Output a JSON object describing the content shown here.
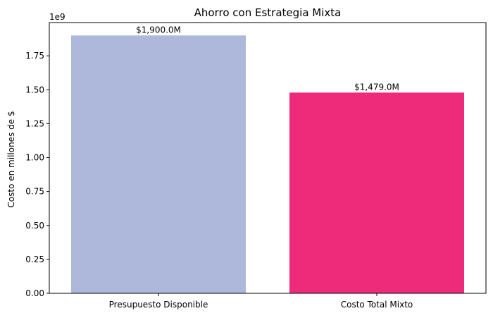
{
  "chart_data": {
    "type": "bar",
    "title": "Ahorro con Estrategia Mixta",
    "xlabel": "",
    "ylabel": "Costo en millones de $",
    "y_offset_label": "1e9",
    "categories": [
      "Presupuesto Disponible",
      "Costo Total Mixto"
    ],
    "values": [
      1900000000,
      1479000000
    ],
    "colors": [
      "#aeb8da",
      "#ee2a7b"
    ],
    "data_labels": [
      "$1,900.0M",
      "$1,479.0M"
    ],
    "ylim": [
      0,
      1995000000
    ],
    "yticks": [
      0,
      250000000,
      500000000,
      750000000,
      1000000000,
      1250000000,
      1500000000,
      1750000000
    ],
    "ytick_labels": [
      "0.00",
      "0.25",
      "0.50",
      "0.75",
      "1.00",
      "1.25",
      "1.50",
      "1.75"
    ],
    "grid": false,
    "legend": false
  }
}
